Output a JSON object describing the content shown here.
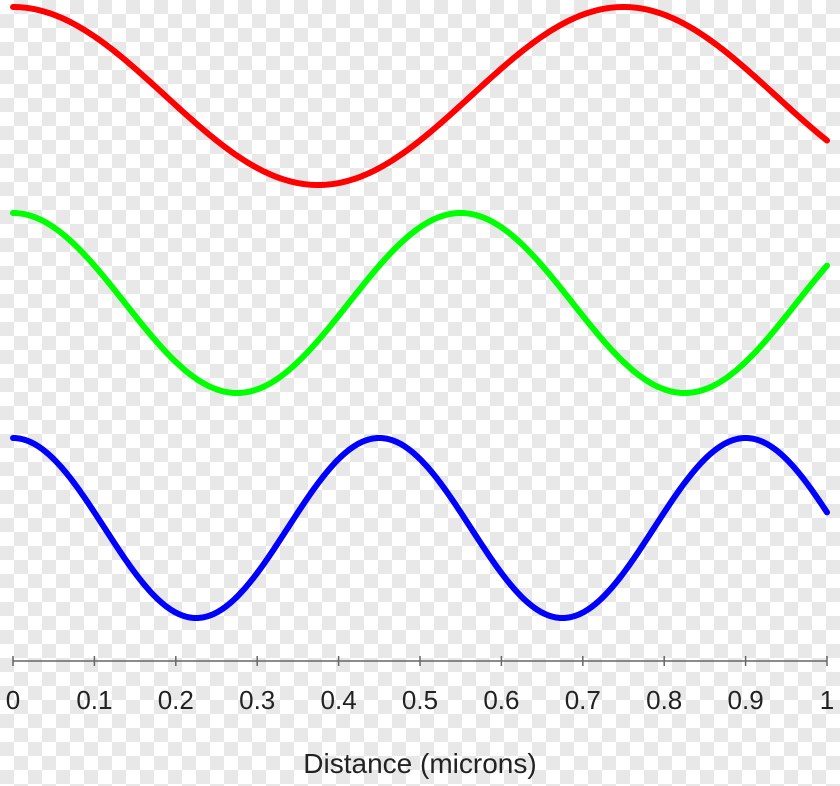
{
  "chart_data": {
    "type": "line",
    "title": "",
    "xlabel": "Distance (microns)",
    "ylabel": "",
    "xlim": [
      0,
      1
    ],
    "xticks": [
      0,
      0.1,
      0.2,
      0.3,
      0.4,
      0.5,
      0.6,
      0.7,
      0.8,
      0.9,
      1
    ],
    "xtick_labels": [
      "0",
      "0.1",
      "0.2",
      "0.3",
      "0.4",
      "0.5",
      "0.6",
      "0.7",
      "0.8",
      "0.9",
      "1"
    ],
    "grid": false,
    "legend": "none",
    "series": [
      {
        "color": "#ff0000",
        "wavelength": 0.75,
        "x": [
          0,
          0.05,
          0.1,
          0.15,
          0.2,
          0.25,
          0.3,
          0.35,
          0.375,
          0.4,
          0.45,
          0.5,
          0.55,
          0.6,
          0.65,
          0.7,
          0.75,
          0.8,
          0.85,
          0.9,
          0.95,
          1
        ],
        "y": [
          1,
          0.914,
          0.669,
          0.309,
          -0.105,
          -0.5,
          -0.809,
          -0.978,
          -1,
          -0.978,
          -0.809,
          -0.5,
          -0.105,
          0.309,
          0.669,
          0.914,
          1,
          0.914,
          0.669,
          0.309,
          -0.105,
          -0.5
        ]
      },
      {
        "color": "#00ff00",
        "wavelength": 0.55,
        "x": [
          0,
          0.05,
          0.1,
          0.15,
          0.2,
          0.25,
          0.275,
          0.3,
          0.35,
          0.4,
          0.45,
          0.5,
          0.55,
          0.6,
          0.65,
          0.7,
          0.75,
          0.8,
          0.825,
          0.85,
          0.9,
          0.95,
          1
        ],
        "y": [
          1,
          0.841,
          0.415,
          -0.142,
          -0.655,
          -0.959,
          -1,
          -0.959,
          -0.655,
          -0.142,
          0.415,
          0.841,
          1,
          0.841,
          0.415,
          -0.142,
          -0.655,
          -0.959,
          -1,
          -0.959,
          -0.655,
          -0.142,
          0.415
        ]
      },
      {
        "color": "#0000ff",
        "wavelength": 0.45,
        "x": [
          0,
          0.05,
          0.1,
          0.15,
          0.2,
          0.225,
          0.25,
          0.3,
          0.35,
          0.4,
          0.45,
          0.5,
          0.55,
          0.6,
          0.65,
          0.675,
          0.7,
          0.75,
          0.8,
          0.85,
          0.9,
          0.95,
          1
        ],
        "y": [
          1,
          0.766,
          0.174,
          -0.5,
          -0.94,
          -1,
          -0.94,
          -0.5,
          0.174,
          0.766,
          1,
          0.766,
          0.174,
          -0.5,
          -0.94,
          -1,
          -0.94,
          -0.5,
          0.174,
          0.766,
          1,
          0.766,
          0.174
        ]
      }
    ]
  }
}
